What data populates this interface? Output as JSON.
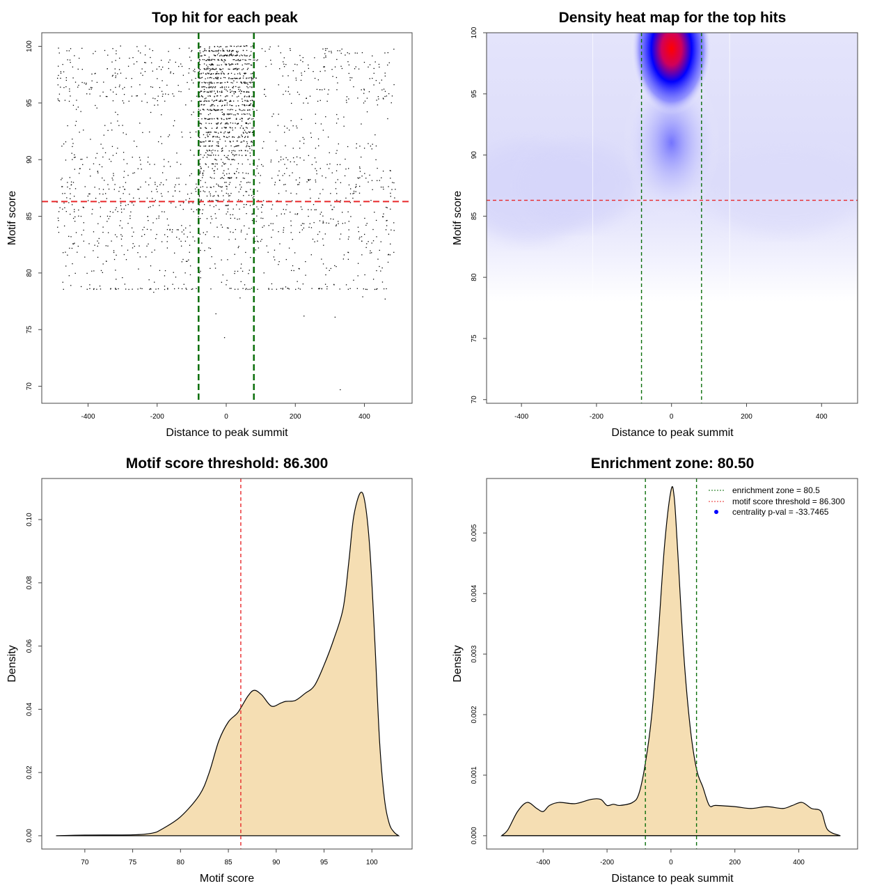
{
  "chart_data": [
    {
      "type": "scatter",
      "title": "Top hit for each peak",
      "xlabel": "Distance to peak summit",
      "ylabel": "Motif score",
      "xlim": [
        -534,
        538
      ],
      "ylim": [
        68.5,
        101.2
      ],
      "xticks": [
        -400,
        -200,
        0,
        200,
        400
      ],
      "yticks": [
        70,
        75,
        80,
        85,
        90,
        95,
        100
      ],
      "hlines": [
        {
          "y": 86.3,
          "color": "#e8282a"
        }
      ],
      "vlines": [
        {
          "x": -80,
          "color": "#0a6e0a"
        },
        {
          "x": 80,
          "color": "#0a6e0a"
        }
      ],
      "outlier_points": [
        [
          330,
          69.7
        ],
        [
          -5,
          74.3
        ],
        [
          -30,
          76.4
        ],
        [
          225,
          76.2
        ],
        [
          315,
          76.1
        ],
        [
          40,
          77.8
        ],
        [
          395,
          77.9
        ],
        [
          460,
          77.7
        ],
        [
          -210,
          78.3
        ],
        [
          -450,
          78.9
        ],
        [
          -420,
          78.8
        ],
        [
          -155,
          79.0
        ]
      ],
      "bulk": {
        "background_n": 1500,
        "central_n": 950,
        "x_range": [
          -490,
          490
        ],
        "central_x_range": [
          -80,
          80
        ],
        "score_range": [
          78.5,
          100
        ],
        "central_score_range": [
          84,
          100
        ]
      }
    },
    {
      "type": "heatmap",
      "title": "Density heat map for the top hits",
      "xlabel": "Distance to peak summit",
      "ylabel": "Motif score",
      "xlim": [
        -493,
        496
      ],
      "ylim": [
        69.7,
        100
      ],
      "xticks": [
        -400,
        -200,
        0,
        200,
        400
      ],
      "yticks": [
        70,
        75,
        80,
        85,
        90,
        95,
        100
      ],
      "hotspot": {
        "x": 0,
        "y": 98.7
      },
      "colors": [
        "#ffffff",
        "#0000ff",
        "#ff0000"
      ],
      "hlines": [
        {
          "y": 86.3,
          "color": "#e8282a"
        }
      ],
      "vlines": [
        {
          "x": -80,
          "color": "#0a6e0a"
        },
        {
          "x": 80,
          "color": "#0a6e0a"
        }
      ]
    },
    {
      "type": "area",
      "title": "Motif score threshold: 86.300",
      "xlabel": "Motif score",
      "ylabel": "Density",
      "xlim": [
        65.5,
        104.2
      ],
      "ylim": [
        -0.0042,
        0.113
      ],
      "xticks": [
        70,
        75,
        80,
        85,
        90,
        95,
        100
      ],
      "yticks": [
        "0.00",
        "0.02",
        "0.04",
        "0.06",
        "0.08",
        "0.10"
      ],
      "fill": "#f5deb3",
      "vlines": [
        {
          "x": 86.3,
          "color": "#e8282a"
        }
      ],
      "x": [
        67,
        70,
        75,
        77,
        78,
        80,
        82,
        83,
        84,
        85,
        86,
        87,
        87.7,
        88.5,
        89.5,
        90.5,
        91,
        92,
        93,
        94,
        95,
        96,
        97,
        97.6,
        98.1,
        98.8,
        99.3,
        99.8,
        100.3,
        100.8,
        101.3,
        101.8,
        102.3,
        102.8
      ],
      "y": [
        0,
        0.0002,
        0.0003,
        0.0008,
        0.002,
        0.006,
        0.013,
        0.02,
        0.03,
        0.036,
        0.039,
        0.044,
        0.046,
        0.0445,
        0.041,
        0.042,
        0.0425,
        0.0428,
        0.045,
        0.0475,
        0.054,
        0.062,
        0.072,
        0.087,
        0.101,
        0.1085,
        0.105,
        0.09,
        0.062,
        0.03,
        0.012,
        0.004,
        0.0012,
        0
      ]
    },
    {
      "type": "area",
      "title": "Enrichment zone: 80.50",
      "xlabel": "Distance to peak summit",
      "ylabel": "Density",
      "xlim": [
        -577,
        584
      ],
      "ylim": [
        -0.00022,
        0.0059
      ],
      "xticks": [
        -400,
        -200,
        0,
        200,
        400
      ],
      "yticks": [
        "0.000",
        "0.001",
        "0.002",
        "0.003",
        "0.004",
        "0.005"
      ],
      "fill": "#f5deb3",
      "vlines": [
        {
          "x": -80,
          "color": "#0a6e0a"
        },
        {
          "x": 80,
          "color": "#0a6e0a"
        }
      ],
      "x": [
        -530,
        -510,
        -480,
        -450,
        -420,
        -400,
        -380,
        -350,
        -300,
        -250,
        -220,
        -200,
        -180,
        -160,
        -120,
        -100,
        -80,
        -60,
        -40,
        -20,
        0,
        10,
        20,
        40,
        60,
        80,
        100,
        120,
        140,
        200,
        250,
        300,
        350,
        380,
        410,
        440,
        470,
        490,
        530
      ],
      "y": [
        0,
        0.0001,
        0.0004,
        0.00055,
        0.00045,
        0.0004,
        0.0005,
        0.00055,
        0.00053,
        0.0006,
        0.0006,
        0.0005,
        0.00052,
        0.0005,
        0.00055,
        0.0007,
        0.0012,
        0.002,
        0.0033,
        0.0048,
        0.0057,
        0.0056,
        0.0048,
        0.003,
        0.0018,
        0.0011,
        0.0008,
        0.0005,
        0.0005,
        0.00048,
        0.00045,
        0.00048,
        0.00045,
        0.0005,
        0.00055,
        0.00045,
        0.0004,
        0.0001,
        0
      ],
      "legend": {
        "placement": "top-right",
        "entries": [
          {
            "label": "enrichment zone = 80.5",
            "color": "#0a6e0a",
            "style": "dotted"
          },
          {
            "label": "motif score threshold = 86.300",
            "color": "#e8282a",
            "style": "dotted"
          },
          {
            "label": "centrality p-val = -33.7465",
            "color": "#0000ff",
            "style": "point"
          }
        ]
      }
    }
  ]
}
